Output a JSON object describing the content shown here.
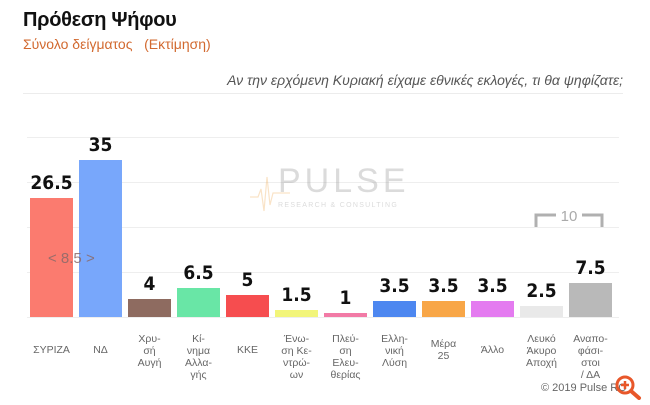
{
  "header": {
    "title": "Πρόθεση Ψήφου",
    "subtitle": "Σύνολο δείγματος   (Εκτίμηση)",
    "question": "Αν την ερχόμενη Κυριακή είχαμε εθνικές εκλογές, τι θα ψηφίζατε;"
  },
  "annotations": {
    "gap_label": "< 8.5 >",
    "bracket_label": "10",
    "watermark_main": "PULSE",
    "watermark_sub": "RESEARCH & CONSULTING",
    "copyright": "© 2019 Pulse RC"
  },
  "icons": {
    "zoom": "zoom-in-icon"
  },
  "chart_data": {
    "type": "bar",
    "title": "Πρόθεση Ψήφου",
    "subtitle": "Σύνολο δείγματος (Εκτίμηση)",
    "question": "Αν την ερχόμενη Κυριακή είχαμε εθνικές εκλογές, τι θα ψηφίζατε;",
    "xlabel": "",
    "ylabel": "",
    "ylim": [
      0,
      40
    ],
    "grid": true,
    "legend": "none",
    "categories": [
      "ΣΥΡΙΖΑ",
      "ΝΔ",
      "Χρυσή Αυγή",
      "Κίνημα Αλλαγής",
      "ΚΚΕ",
      "Ένωση Κεντρώων",
      "Πλεύση Ελευθερίας",
      "Ελληνική Λύση",
      "Μέρα 25",
      "Άλλο",
      "Λευκό Άκυρο Αποχή",
      "Αναποφάσιστοι / ΔΑ"
    ],
    "values": [
      26.5,
      35,
      4,
      6.5,
      5,
      1.5,
      1,
      3.5,
      3.5,
      3.5,
      2.5,
      7.5
    ],
    "value_labels": [
      "26.5",
      "35",
      "4",
      "6.5",
      "5",
      "1.5",
      "1",
      "3.5",
      "3.5",
      "3.5",
      "2.5",
      "7.5"
    ],
    "display_labels": [
      "ΣΥΡΙΖΑ",
      "ΝΔ",
      "Χρυ-\nσή\nΑυγή",
      "Κί-\nνημα\nΑλλα-\nγής",
      "ΚΚΕ",
      "Ένω-\nση Κε-\nντρώ-\nων",
      "Πλεύ-\nση\nΕλευ-\nθερίας",
      "Ελλη-\nνική\nΛύση",
      "Μέρα\n25",
      "Άλλο",
      "Λευκό\nΆκυρο\nΑποχή",
      "Αναπο-\nφάσι-\nστοι\n/ ΔΑ"
    ],
    "colors": [
      "#fb7b6f",
      "#78a7fb",
      "#8e6b60",
      "#69e6a6",
      "#f64d4f",
      "#f2f57a",
      "#f27aa6",
      "#4d87f0",
      "#f8a647",
      "#e47bf0",
      "#e9e9e9",
      "#b9b9b9"
    ],
    "annotations": [
      {
        "text": "< 8.5 >",
        "meaning": "gap between ΝΔ and ΣΥΡΙΖΑ"
      },
      {
        "text": "10",
        "meaning": "bracket: Λευκό/Άκυρο/Αποχή + Αναποφάσιστοι"
      }
    ]
  }
}
